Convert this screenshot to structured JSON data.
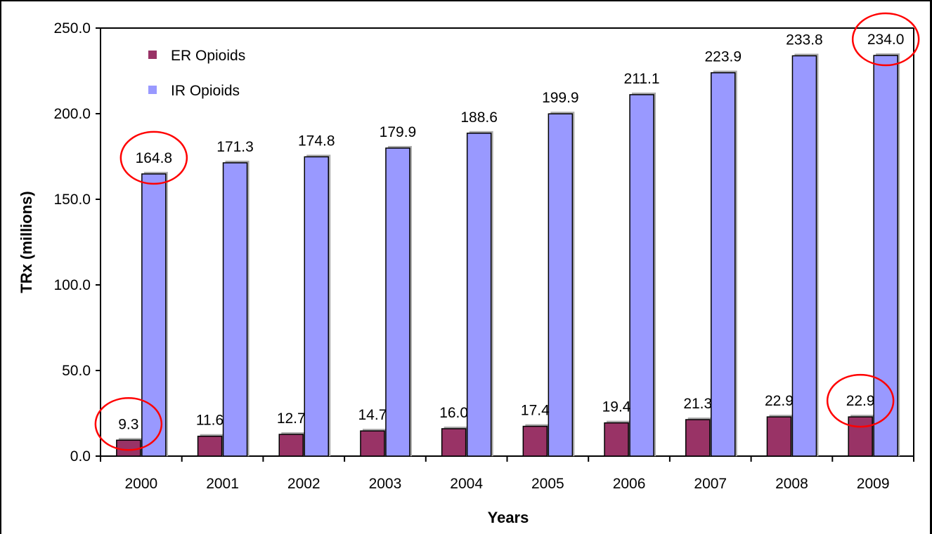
{
  "chart_data": {
    "type": "bar",
    "xlabel": "Years",
    "ylabel": "TRx (millions)",
    "ylim": [
      0,
      250
    ],
    "y_ticks": [
      "0.0",
      "50.0",
      "100.0",
      "150.0",
      "200.0",
      "250.0"
    ],
    "grid": false,
    "legend_position": "top-left",
    "categories": [
      "2000",
      "2001",
      "2002",
      "2003",
      "2004",
      "2005",
      "2006",
      "2007",
      "2008",
      "2009"
    ],
    "series": [
      {
        "name": "ER Opioids",
        "color": "#993366",
        "values": [
          9.3,
          11.6,
          12.7,
          14.7,
          16.0,
          17.4,
          19.4,
          21.3,
          22.9,
          22.9
        ],
        "labels": [
          "9.3",
          "11.6",
          "12.7",
          "14.7",
          "16.0",
          "17.4",
          "19.4",
          "21.3",
          "22.9",
          "22.9"
        ]
      },
      {
        "name": "IR Opioids",
        "color": "#9999ff",
        "values": [
          164.8,
          171.3,
          174.8,
          179.9,
          188.6,
          199.9,
          211.1,
          223.9,
          233.8,
          234.0
        ],
        "labels": [
          "164.8",
          "171.3",
          "174.8",
          "179.9",
          "188.6",
          "199.9",
          "211.1",
          "223.9",
          "233.8",
          "234.0"
        ]
      }
    ],
    "annotations": {
      "type": "circle",
      "color": "#ff0000",
      "highlighted": [
        {
          "series": 0,
          "index": 0
        },
        {
          "series": 1,
          "index": 0
        },
        {
          "series": 0,
          "index": 9
        },
        {
          "series": 1,
          "index": 9
        }
      ]
    }
  }
}
